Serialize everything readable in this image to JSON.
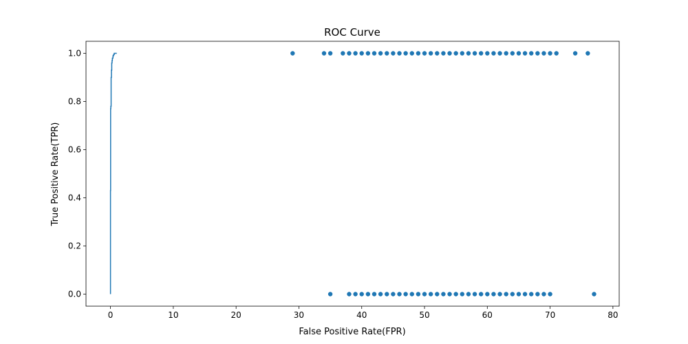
{
  "chart_data": {
    "type": "scatter",
    "title": "ROC Curve",
    "xlabel": "False Positive Rate(FPR)",
    "ylabel": "True Positive Rate(TPR)",
    "xlim": [
      -3.9,
      81.0
    ],
    "ylim": [
      -0.05,
      1.05
    ],
    "grid": false,
    "legend": "none",
    "x_ticks": [
      0,
      10,
      20,
      30,
      40,
      50,
      60,
      70,
      80
    ],
    "x_tick_labels": [
      "0",
      "10",
      "20",
      "30",
      "40",
      "50",
      "60",
      "70",
      "80"
    ],
    "y_ticks": [
      0.0,
      0.2,
      0.4,
      0.6,
      0.8,
      1.0
    ],
    "y_tick_labels": [
      "0.0",
      "0.2",
      "0.4",
      "0.6",
      "0.8",
      "1.0"
    ],
    "color": "#1f77b4",
    "line": {
      "x": [
        0.0,
        0.0,
        0.0,
        0.01,
        0.02,
        0.02,
        0.05,
        0.05,
        0.1,
        0.1,
        0.15,
        0.15,
        0.2,
        0.2,
        0.25,
        0.25,
        0.3,
        0.3,
        0.4,
        0.4,
        0.5,
        0.5,
        0.6,
        0.6,
        0.8,
        0.8,
        1.0
      ],
      "y": [
        0.0,
        0.2,
        0.43,
        0.43,
        0.43,
        0.77,
        0.77,
        0.78,
        0.78,
        0.9,
        0.9,
        0.93,
        0.93,
        0.96,
        0.96,
        0.97,
        0.97,
        0.98,
        0.98,
        0.99,
        0.99,
        0.995,
        0.995,
        1.0,
        1.0,
        1.0,
        1.0
      ]
    },
    "points": {
      "x": [
        29,
        34,
        35,
        37,
        38,
        39,
        40,
        41,
        42,
        43,
        44,
        45,
        46,
        47,
        48,
        49,
        50,
        51,
        52,
        53,
        54,
        55,
        56,
        57,
        58,
        59,
        60,
        61,
        62,
        63,
        64,
        65,
        66,
        67,
        68,
        69,
        70,
        71,
        74,
        76,
        35,
        38,
        39,
        40,
        41,
        42,
        43,
        44,
        45,
        46,
        47,
        48,
        49,
        50,
        51,
        52,
        53,
        54,
        55,
        56,
        57,
        58,
        59,
        60,
        61,
        62,
        63,
        64,
        65,
        66,
        67,
        68,
        69,
        70,
        77
      ],
      "y": [
        1,
        1,
        1,
        1,
        1,
        1,
        1,
        1,
        1,
        1,
        1,
        1,
        1,
        1,
        1,
        1,
        1,
        1,
        1,
        1,
        1,
        1,
        1,
        1,
        1,
        1,
        1,
        1,
        1,
        1,
        1,
        1,
        1,
        1,
        1,
        1,
        1,
        1,
        1,
        1,
        0,
        0,
        0,
        0,
        0,
        0,
        0,
        0,
        0,
        0,
        0,
        0,
        0,
        0,
        0,
        0,
        0,
        0,
        0,
        0,
        0,
        0,
        0,
        0,
        0,
        0,
        0,
        0,
        0,
        0,
        0,
        0,
        0,
        0,
        0
      ]
    }
  }
}
